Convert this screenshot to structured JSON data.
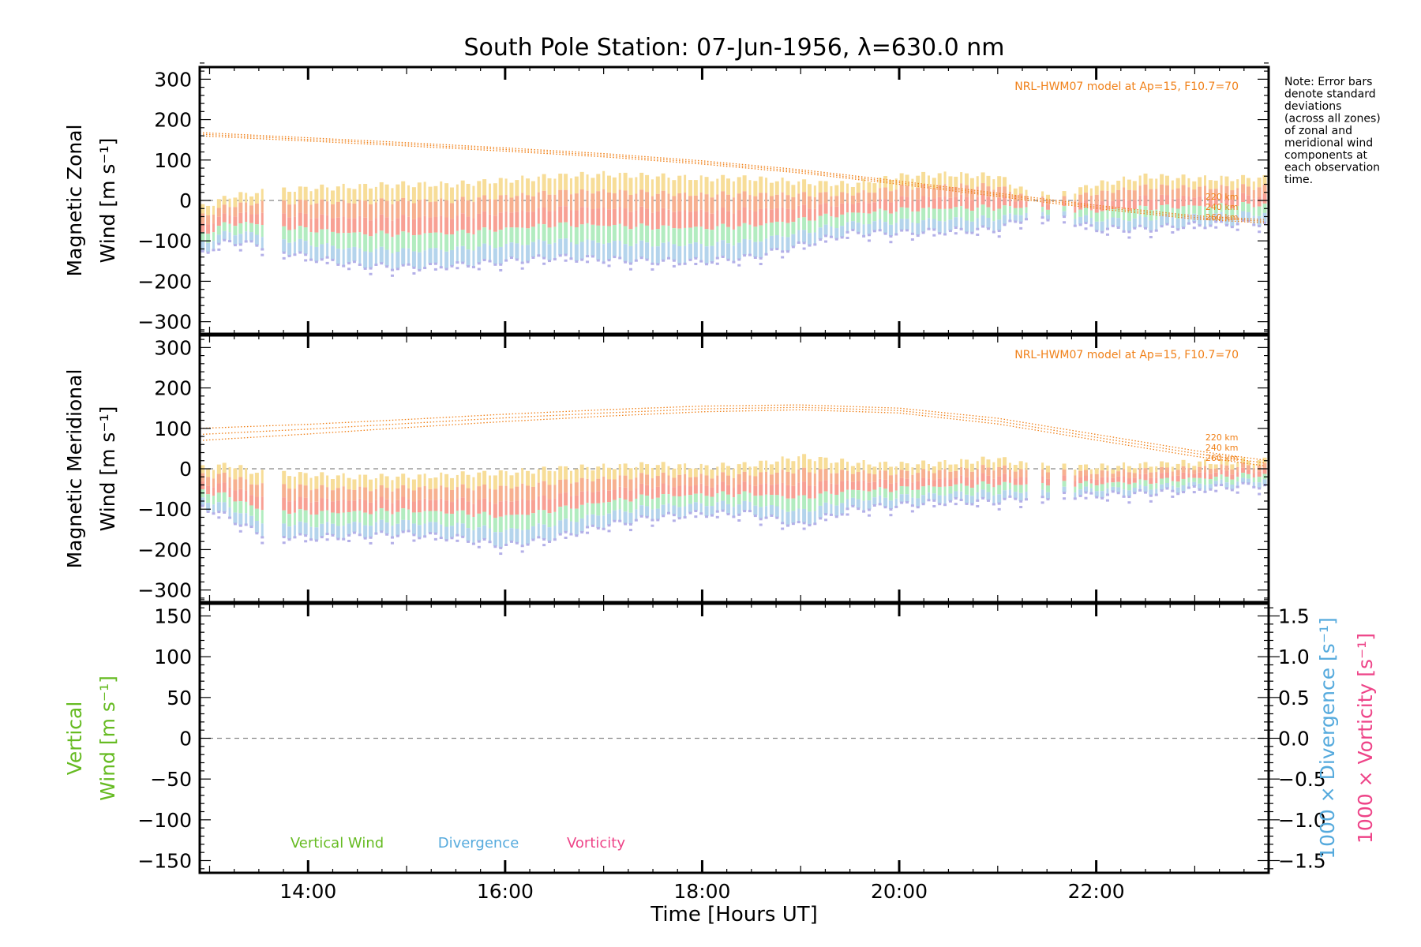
{
  "chart_data": {
    "type": "line",
    "title": "South Pole Station: 07-Jun-1956, λ=630.0 nm",
    "xlabel": "Time [Hours UT]",
    "xlim": [
      12.9,
      23.75
    ],
    "x_ticks": [
      14,
      16,
      18,
      20,
      22
    ],
    "x_tick_labels": [
      "14:00",
      "16:00",
      "18:00",
      "20:00",
      "22:00"
    ],
    "note": [
      "Note: Error bars",
      "denote standard",
      "deviations",
      "(across all zones)",
      "of zonal and",
      "meridional wind",
      "components at",
      "each observation",
      "time."
    ],
    "model_label": "NRL-HWM07 model at Ap=15, F10.7=70",
    "altitude_labels": [
      "220 km",
      "240 km",
      "260 km"
    ],
    "colors": {
      "model": "#f08018",
      "yellow": "#f7dd98",
      "orange": "#f7b090",
      "salmon": "#f8a094",
      "green": "#b2ecc0",
      "blue": "#b4d4ec",
      "purple": "#b4b0e8",
      "vertical": "#66bb22",
      "divergence": "#55aadd",
      "vorticity": "#ee4488"
    },
    "panels": [
      {
        "id": "zonal",
        "ylabel_line1": "Magnetic Zonal",
        "ylabel_line2": "Wind [m s⁻¹]",
        "ylim": [
          -330,
          330
        ],
        "y_ticks": [
          300,
          200,
          100,
          0,
          -100,
          -200,
          -300
        ],
        "y_tick_labels": [
          "300",
          "200",
          "100",
          "0",
          "−100",
          "−200",
          "−300"
        ],
        "model_series": [
          {
            "name": "220 km",
            "x": [
              12.9,
              14,
              15,
              16,
              17,
              18,
              19,
              20,
              21,
              22,
              23,
              23.75
            ],
            "y": [
              168,
              155,
              143,
              130,
              116,
              98,
              76,
              48,
              18,
              -12,
              -38,
              -48
            ]
          },
          {
            "name": "240 km",
            "x": [
              12.9,
              14,
              15,
              16,
              17,
              18,
              19,
              20,
              21,
              22,
              23,
              23.75
            ],
            "y": [
              164,
              151,
              139,
              126,
              112,
              94,
              72,
              44,
              14,
              -16,
              -42,
              -52
            ]
          },
          {
            "name": "260 km",
            "x": [
              12.9,
              14,
              15,
              16,
              17,
              18,
              19,
              20,
              21,
              22,
              23,
              23.75
            ],
            "y": [
              160,
              147,
              135,
              122,
              108,
              90,
              68,
              40,
              10,
              -20,
              -46,
              -56
            ]
          }
        ],
        "obs": {
          "x": [
            12.9,
            13.2,
            13.5,
            14.0,
            14.5,
            15.0,
            15.5,
            16.0,
            16.5,
            17.0,
            17.5,
            18.0,
            18.5,
            19.0,
            19.5,
            20.0,
            20.5,
            21.0,
            21.3,
            21.6,
            22.0,
            22.5,
            23.0,
            23.6
          ],
          "top": [
            -20,
            10,
            20,
            30,
            35,
            40,
            40,
            50,
            60,
            65,
            60,
            55,
            55,
            45,
            40,
            60,
            65,
            60,
            20,
            10,
            40,
            60,
            55,
            55
          ],
          "bot": [
            -130,
            -100,
            -110,
            -140,
            -160,
            -165,
            -160,
            -150,
            -140,
            -145,
            -150,
            -150,
            -140,
            -110,
            -80,
            -80,
            -75,
            -70,
            -40,
            -40,
            -70,
            -70,
            -60,
            -55
          ]
        }
      },
      {
        "id": "meridional",
        "ylabel_line1": "Magnetic Meridional",
        "ylabel_line2": "Wind [m s⁻¹]",
        "ylim": [
          -330,
          330
        ],
        "y_ticks": [
          300,
          200,
          100,
          0,
          -100,
          -200,
          -300
        ],
        "y_tick_labels": [
          "300",
          "200",
          "100",
          "0",
          "−100",
          "−200",
          "−300"
        ],
        "model_series": [
          {
            "name": "220 km",
            "x": [
              12.9,
              14,
              15,
              16,
              17,
              18,
              19,
              20,
              21,
              22,
              23,
              23.75
            ],
            "y": [
              100,
              110,
              122,
              135,
              146,
              155,
              158,
              150,
              125,
              85,
              45,
              20
            ]
          },
          {
            "name": "240 km",
            "x": [
              12.9,
              14,
              15,
              16,
              17,
              18,
              19,
              20,
              21,
              22,
              23,
              23.75
            ],
            "y": [
              85,
              98,
              112,
              126,
              138,
              148,
              152,
              144,
              118,
              78,
              38,
              13
            ]
          },
          {
            "name": "260 km",
            "x": [
              12.9,
              14,
              15,
              16,
              17,
              18,
              19,
              20,
              21,
              22,
              23,
              23.75
            ],
            "y": [
              70,
              86,
              102,
              117,
              130,
              141,
              146,
              138,
              111,
              71,
              31,
              6
            ]
          }
        ],
        "obs": {
          "x": [
            12.9,
            13.2,
            13.5,
            14.0,
            14.5,
            15.0,
            15.5,
            16.0,
            16.5,
            17.0,
            17.5,
            18.0,
            18.5,
            19.0,
            19.5,
            20.0,
            20.5,
            21.0,
            21.3,
            21.6,
            22.0,
            22.5,
            23.0,
            23.6
          ],
          "top": [
            0,
            10,
            -10,
            -15,
            -20,
            -20,
            -15,
            -10,
            0,
            5,
            10,
            5,
            10,
            30,
            15,
            10,
            15,
            25,
            10,
            5,
            5,
            10,
            15,
            20
          ],
          "bot": [
            -90,
            -120,
            -160,
            -170,
            -165,
            -160,
            -170,
            -190,
            -170,
            -140,
            -120,
            -110,
            -110,
            -140,
            -100,
            -90,
            -80,
            -80,
            -70,
            -65,
            -65,
            -60,
            -50,
            -40
          ]
        }
      },
      {
        "id": "vertical",
        "ylabel_line1": "Vertical",
        "ylabel_line2": "Wind [m s⁻¹]",
        "ylim": [
          -165,
          165
        ],
        "y_ticks": [
          150,
          100,
          50,
          0,
          -50,
          -100,
          -150
        ],
        "y_tick_labels": [
          "150",
          "100",
          "50",
          "0",
          "−50",
          "−100",
          "−150"
        ],
        "right_ylim": [
          -1.65,
          1.65
        ],
        "right_ticks": [
          1.5,
          1.0,
          0.5,
          0.0,
          -0.5,
          -1.0,
          -1.5
        ],
        "right_tick_labels": [
          "1.5",
          "1.0",
          "0.5",
          "0.0",
          "−0.5",
          "−1.0",
          "−1.5"
        ],
        "right_label_div": "1000 × Divergence [s⁻¹]",
        "right_label_vor": "1000 × Vorticity [s⁻¹]",
        "legend": [
          "Vertical Wind",
          "Divergence",
          "Vorticity"
        ]
      }
    ]
  }
}
